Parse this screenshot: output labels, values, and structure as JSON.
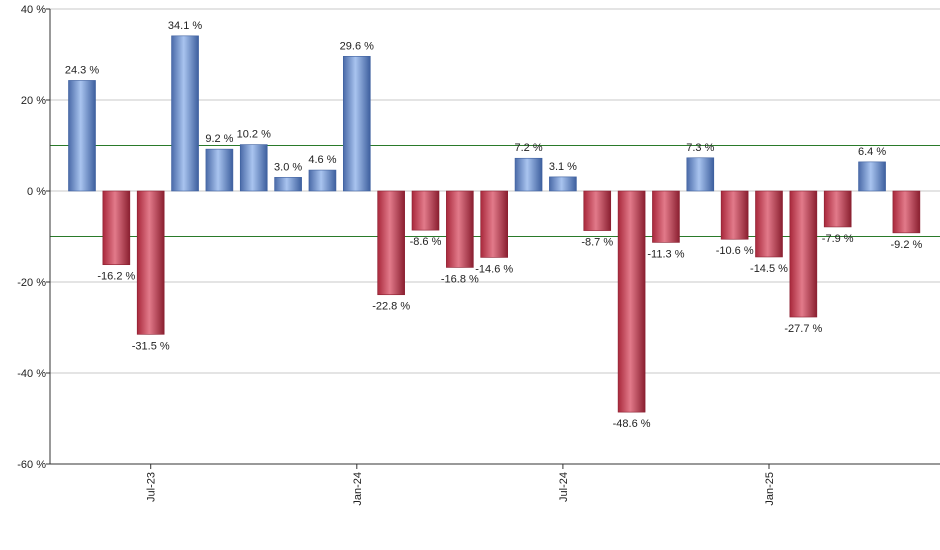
{
  "chart_data": {
    "type": "bar",
    "values": [
      24.3,
      -16.2,
      -31.5,
      34.1,
      9.2,
      10.2,
      3.0,
      4.6,
      29.6,
      -22.8,
      -8.6,
      -16.8,
      -14.6,
      7.2,
      3.1,
      -8.7,
      -48.6,
      -11.3,
      7.3,
      -10.6,
      -14.5,
      -27.7,
      -7.9,
      6.4,
      -9.2
    ],
    "data_labels": [
      "24.3 %",
      "-16.2 %",
      "-31.5 %",
      "34.1 %",
      "9.2 %",
      "10.2 %",
      "3.0 %",
      "4.6 %",
      "29.6 %",
      "-22.8 %",
      "-8.6 %",
      "-16.8 %",
      "-14.6 %",
      "7.2 %",
      "3.1 %",
      "-8.7 %",
      "-48.6 %",
      "-11.3 %",
      "7.3 %",
      "-10.6 %",
      "-14.5 %",
      "-27.7 %",
      "-7.9 %",
      "6.4 %",
      "-9.2 %"
    ],
    "x_ticks": [
      {
        "label": "Jul-23",
        "bar_index": 2
      },
      {
        "label": "Jan-24",
        "bar_index": 8
      },
      {
        "label": "Jul-24",
        "bar_index": 14
      },
      {
        "label": "Jan-25",
        "bar_index": 20
      }
    ],
    "y_ticks": [
      {
        "value": 40,
        "label": "40 %"
      },
      {
        "value": 20,
        "label": "20 %"
      },
      {
        "value": 0,
        "label": "0 %"
      },
      {
        "value": -20,
        "label": "-20 %"
      },
      {
        "value": -40,
        "label": "-40 %"
      },
      {
        "value": -60,
        "label": "-60 %"
      }
    ],
    "ylim": [
      -60,
      40
    ],
    "reference_lines": [
      10,
      -10
    ],
    "grid": true,
    "colors": {
      "positive": "#7a9fd8",
      "positive_dark": "#3d5f9e",
      "negative": "#c94457",
      "negative_dark": "#8a1f30",
      "reference": "#2a7a2a",
      "grid": "#c8c8c8"
    }
  }
}
